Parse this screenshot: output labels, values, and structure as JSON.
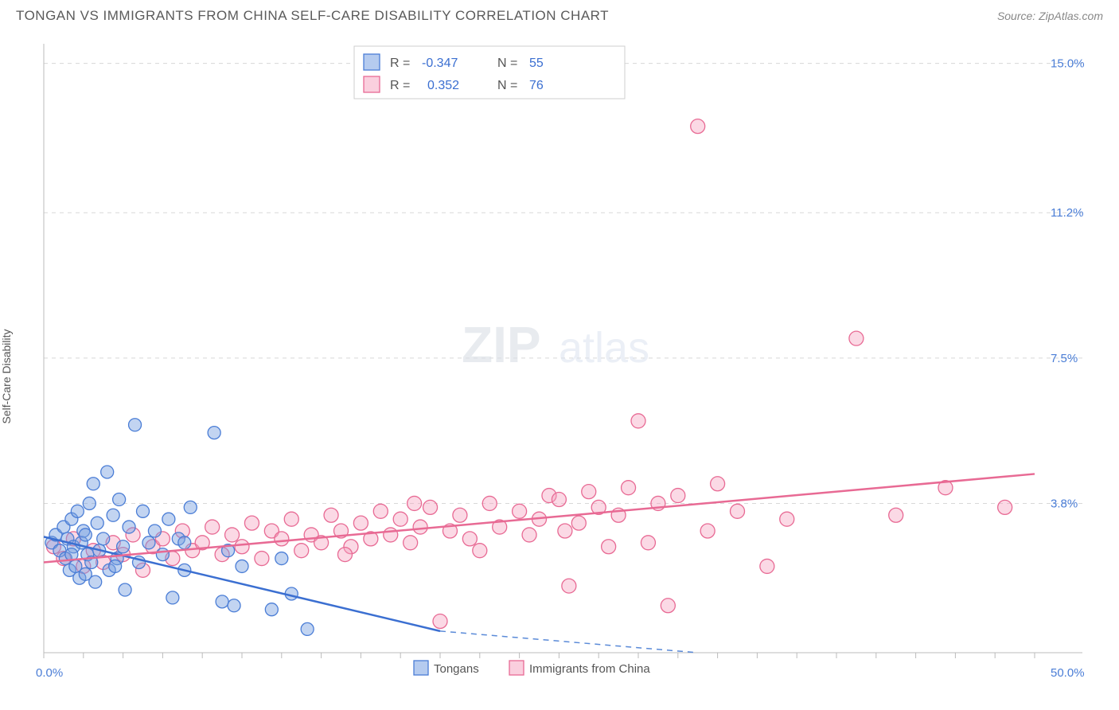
{
  "header": {
    "title": "TONGAN VS IMMIGRANTS FROM CHINA SELF-CARE DISABILITY CORRELATION CHART",
    "source": "Source: ZipAtlas.com"
  },
  "ylabel": "Self-Care Disability",
  "watermark": {
    "part1": "ZIP",
    "part2": "atlas"
  },
  "chart": {
    "type": "scatter",
    "background_color": "#ffffff",
    "grid_color": "#d8d8d8",
    "x_range": [
      0,
      50
    ],
    "y_range": [
      0,
      15.5
    ],
    "y_ticks": [
      {
        "v": 3.8,
        "label": "3.8%"
      },
      {
        "v": 7.5,
        "label": "7.5%"
      },
      {
        "v": 11.2,
        "label": "11.2%"
      },
      {
        "v": 15.0,
        "label": "15.0%"
      }
    ],
    "x_ticks_end": {
      "min_label": "0.0%",
      "max_label": "50.0%"
    },
    "x_minor_tick_step": 2,
    "series": {
      "blue": {
        "label": "Tongans",
        "color_fill": "rgba(120,160,225,0.45)",
        "color_stroke": "#4a7dd6",
        "marker_radius": 8,
        "R": "-0.347",
        "N": "55",
        "trend": {
          "x1": 0,
          "y1": 2.95,
          "x2": 20,
          "y2": 0.55,
          "dash_to_x": 33
        },
        "points": [
          [
            0.4,
            2.8
          ],
          [
            0.6,
            3.0
          ],
          [
            0.8,
            2.6
          ],
          [
            1.0,
            3.2
          ],
          [
            1.1,
            2.4
          ],
          [
            1.2,
            2.9
          ],
          [
            1.3,
            2.1
          ],
          [
            1.4,
            3.4
          ],
          [
            1.5,
            2.7
          ],
          [
            1.6,
            2.2
          ],
          [
            1.7,
            3.6
          ],
          [
            1.8,
            1.9
          ],
          [
            1.9,
            2.8
          ],
          [
            2.0,
            3.1
          ],
          [
            2.1,
            2.0
          ],
          [
            2.2,
            2.5
          ],
          [
            2.3,
            3.8
          ],
          [
            2.4,
            2.3
          ],
          [
            2.5,
            4.3
          ],
          [
            2.6,
            1.8
          ],
          [
            2.7,
            3.3
          ],
          [
            2.8,
            2.6
          ],
          [
            3.0,
            2.9
          ],
          [
            3.2,
            4.6
          ],
          [
            3.3,
            2.1
          ],
          [
            3.5,
            3.5
          ],
          [
            3.7,
            2.4
          ],
          [
            3.8,
            3.9
          ],
          [
            4.0,
            2.7
          ],
          [
            4.1,
            1.6
          ],
          [
            4.3,
            3.2
          ],
          [
            4.6,
            5.8
          ],
          [
            4.8,
            2.3
          ],
          [
            5.0,
            3.6
          ],
          [
            5.3,
            2.8
          ],
          [
            5.6,
            3.1
          ],
          [
            6.0,
            2.5
          ],
          [
            6.3,
            3.4
          ],
          [
            6.5,
            1.4
          ],
          [
            6.8,
            2.9
          ],
          [
            7.1,
            2.1
          ],
          [
            7.4,
            3.7
          ],
          [
            8.6,
            5.6
          ],
          [
            9.0,
            1.3
          ],
          [
            9.3,
            2.6
          ],
          [
            9.6,
            1.2
          ],
          [
            10.0,
            2.2
          ],
          [
            11.5,
            1.1
          ],
          [
            12.0,
            2.4
          ],
          [
            12.5,
            1.5
          ],
          [
            13.3,
            0.6
          ],
          [
            7.1,
            2.8
          ],
          [
            1.4,
            2.5
          ],
          [
            2.1,
            3.0
          ],
          [
            3.6,
            2.2
          ]
        ]
      },
      "pink": {
        "label": "Immigrants from China",
        "color_fill": "rgba(245,160,190,0.4)",
        "color_stroke": "#e86a94",
        "marker_radius": 9,
        "R": "0.352",
        "N": "76",
        "trend": {
          "x1": 0,
          "y1": 2.3,
          "x2": 50,
          "y2": 4.55
        },
        "points": [
          [
            0.5,
            2.7
          ],
          [
            1.0,
            2.4
          ],
          [
            1.5,
            2.9
          ],
          [
            2.0,
            2.2
          ],
          [
            2.5,
            2.6
          ],
          [
            3.0,
            2.3
          ],
          [
            3.5,
            2.8
          ],
          [
            4.0,
            2.5
          ],
          [
            4.5,
            3.0
          ],
          [
            5.0,
            2.1
          ],
          [
            5.5,
            2.7
          ],
          [
            6.0,
            2.9
          ],
          [
            6.5,
            2.4
          ],
          [
            7.0,
            3.1
          ],
          [
            7.5,
            2.6
          ],
          [
            8.0,
            2.8
          ],
          [
            8.5,
            3.2
          ],
          [
            9.0,
            2.5
          ],
          [
            9.5,
            3.0
          ],
          [
            10.0,
            2.7
          ],
          [
            10.5,
            3.3
          ],
          [
            11.0,
            2.4
          ],
          [
            11.5,
            3.1
          ],
          [
            12.0,
            2.9
          ],
          [
            12.5,
            3.4
          ],
          [
            13.0,
            2.6
          ],
          [
            13.5,
            3.0
          ],
          [
            14.0,
            2.8
          ],
          [
            14.5,
            3.5
          ],
          [
            15.0,
            3.1
          ],
          [
            15.5,
            2.7
          ],
          [
            16.0,
            3.3
          ],
          [
            16.5,
            2.9
          ],
          [
            17.0,
            3.6
          ],
          [
            17.5,
            3.0
          ],
          [
            18.0,
            3.4
          ],
          [
            18.5,
            2.8
          ],
          [
            19.0,
            3.2
          ],
          [
            19.5,
            3.7
          ],
          [
            20.0,
            0.8
          ],
          [
            20.5,
            3.1
          ],
          [
            21.0,
            3.5
          ],
          [
            21.5,
            2.9
          ],
          [
            22.5,
            3.8
          ],
          [
            23.0,
            3.2
          ],
          [
            24.0,
            3.6
          ],
          [
            24.5,
            3.0
          ],
          [
            25.0,
            3.4
          ],
          [
            25.5,
            4.0
          ],
          [
            26.0,
            3.9
          ],
          [
            26.5,
            1.7
          ],
          [
            27.0,
            3.3
          ],
          [
            27.5,
            4.1
          ],
          [
            28.0,
            3.7
          ],
          [
            28.5,
            2.7
          ],
          [
            29.0,
            3.5
          ],
          [
            29.5,
            4.2
          ],
          [
            30.0,
            5.9
          ],
          [
            30.5,
            2.8
          ],
          [
            31.0,
            3.8
          ],
          [
            31.5,
            1.2
          ],
          [
            32.0,
            4.0
          ],
          [
            33.0,
            13.4
          ],
          [
            33.5,
            3.1
          ],
          [
            34.0,
            4.3
          ],
          [
            35.0,
            3.6
          ],
          [
            36.5,
            2.2
          ],
          [
            37.5,
            3.4
          ],
          [
            41.0,
            8.0
          ],
          [
            43.0,
            3.5
          ],
          [
            45.5,
            4.2
          ],
          [
            48.5,
            3.7
          ],
          [
            15.2,
            2.5
          ],
          [
            18.7,
            3.8
          ],
          [
            22.0,
            2.6
          ],
          [
            26.3,
            3.1
          ]
        ]
      }
    },
    "stats_legend": {
      "r_label": "R =",
      "n_label": "N ="
    },
    "bottom_legend": {
      "items": [
        "Tongans",
        "Immigrants from China"
      ]
    }
  }
}
